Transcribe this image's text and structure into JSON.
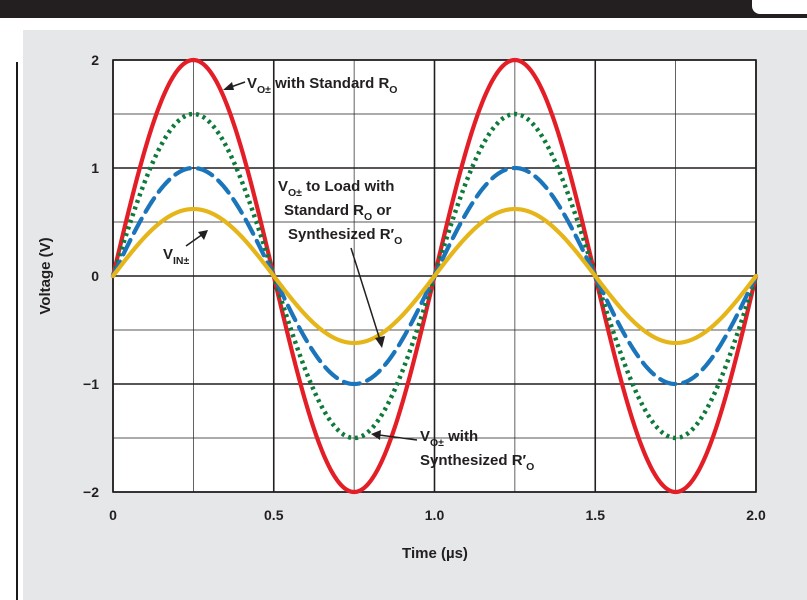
{
  "chart_data": {
    "type": "line",
    "title": "",
    "xlabel": "Time (µs)",
    "ylabel": "Voltage (V)",
    "xlim": [
      0,
      2.0
    ],
    "ylim": [
      -2,
      2
    ],
    "x_ticks": [
      "0",
      "0.5",
      "1.0",
      "1.5",
      "2.0"
    ],
    "y_ticks": [
      "2",
      "1",
      "0",
      "−1",
      "−2"
    ],
    "grid": true,
    "x_domain": [
      0,
      2.0
    ],
    "series": [
      {
        "amplitude": 2.0,
        "frequency_mhz": 1,
        "color": "#e31e26",
        "style": "solid"
      },
      {
        "amplitude": 1.5,
        "frequency_mhz": 1,
        "color": "#0d7a3a",
        "style": "dotted"
      },
      {
        "amplitude": 1.0,
        "frequency_mhz": 1,
        "color": "#1b75bb",
        "style": "dashed"
      },
      {
        "amplitude": 0.62,
        "frequency_mhz": 1,
        "color": "#e5b51a",
        "style": "solid"
      }
    ],
    "annotations": {
      "vo_std": {
        "main": "V",
        "sub": "O±",
        "rest": " with Standard R",
        "sub2": "O"
      },
      "vo_load_line1": {
        "main": "V",
        "sub": "O±",
        "rest": " to Load with"
      },
      "vo_load_line2": {
        "rest": "Standard R",
        "sub": "O",
        "rest2": " or"
      },
      "vo_load_line3": {
        "rest": "Synthesized R′",
        "sub": "O"
      },
      "vin": {
        "main": "V",
        "sub": "IN±"
      },
      "vo_syn_line1": {
        "main": "V",
        "sub": "O±",
        "rest": " with"
      },
      "vo_syn_line2": {
        "rest": "Synthesized R′",
        "sub": "O"
      }
    }
  }
}
